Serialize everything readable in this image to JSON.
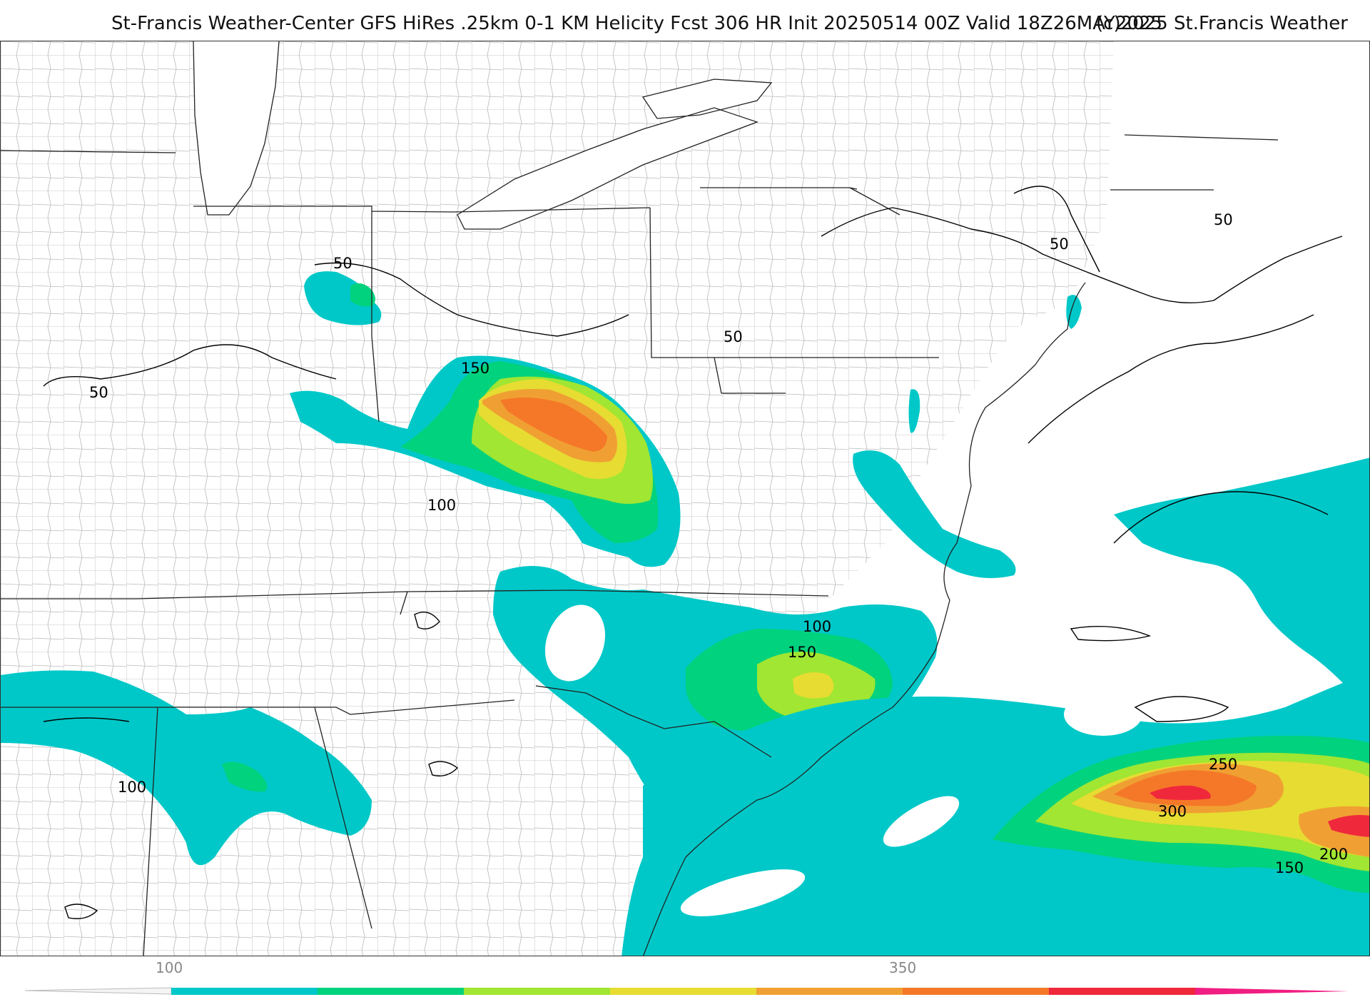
{
  "header": {
    "title": "St-Francis Weather-Center GFS HiRes .25km 0-1 KM Helicity Fcst 306 HR Init 20250514 00Z  Valid 18Z26MAY2025",
    "copyright": "(c)2025 St.Francis Weather"
  },
  "colors": {
    "c100": "#00c8c8",
    "c150": "#00d27d",
    "c200": "#a0e632",
    "c250": "#e6dc32",
    "c300": "#f0a032",
    "c350": "#f57828",
    "c400": "#f0283c",
    "c450": "#f01e82",
    "border": "#222222",
    "county": "#b4b4b4"
  },
  "contour_labels": [
    {
      "id": "lbl-50-il",
      "text": "50"
    },
    {
      "id": "lbl-50-mo",
      "text": "50"
    },
    {
      "id": "lbl-150-oh",
      "text": "150"
    },
    {
      "id": "lbl-100-ky",
      "text": "100"
    },
    {
      "id": "lbl-50-pa",
      "text": "50"
    },
    {
      "id": "lbl-50-ny",
      "text": "50"
    },
    {
      "id": "lbl-50-ne",
      "text": "50"
    },
    {
      "id": "lbl-100-nc",
      "text": "100"
    },
    {
      "id": "lbl-150-nc",
      "text": "150"
    },
    {
      "id": "lbl-100-al",
      "text": "100"
    },
    {
      "id": "lbl-250-at",
      "text": "250"
    },
    {
      "id": "lbl-300-at",
      "text": "300"
    },
    {
      "id": "lbl-200-at",
      "text": "200"
    },
    {
      "id": "lbl-150-at",
      "text": "150"
    }
  ],
  "colorbar": {
    "ticks": [
      "100",
      "350"
    ]
  }
}
